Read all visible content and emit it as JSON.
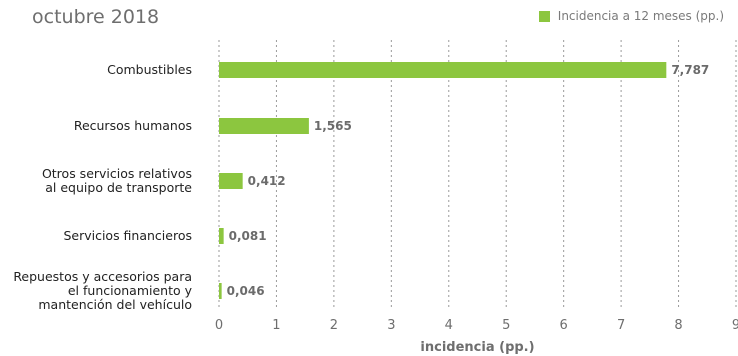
{
  "chart_data": {
    "type": "bar",
    "orientation": "horizontal",
    "subtitle": "octubre 2018",
    "categories": [
      [
        "Combustibles"
      ],
      [
        "Recursos humanos"
      ],
      [
        "Otros servicios relativos",
        "al equipo de transporte"
      ],
      [
        "Servicios financieros"
      ],
      [
        "Repuestos y accesorios para",
        "el funcionamiento y",
        "mantención del vehículo"
      ]
    ],
    "series": [
      {
        "name": "Incidencia a 12 meses (pp.)",
        "values": [
          7.787,
          1.565,
          0.412,
          0.081,
          0.046
        ]
      }
    ],
    "value_labels": [
      "7,787",
      "1,565",
      "0,412",
      "0,081",
      "0,046"
    ],
    "xlabel": "incidencia (pp.)",
    "xlim": [
      0,
      9
    ],
    "xticks": [
      "0",
      "1",
      "2",
      "3",
      "4",
      "5",
      "6",
      "7",
      "8",
      "9"
    ],
    "grid": "vertical",
    "legend_position": "top-right",
    "bar_color": "#8cc63f"
  }
}
